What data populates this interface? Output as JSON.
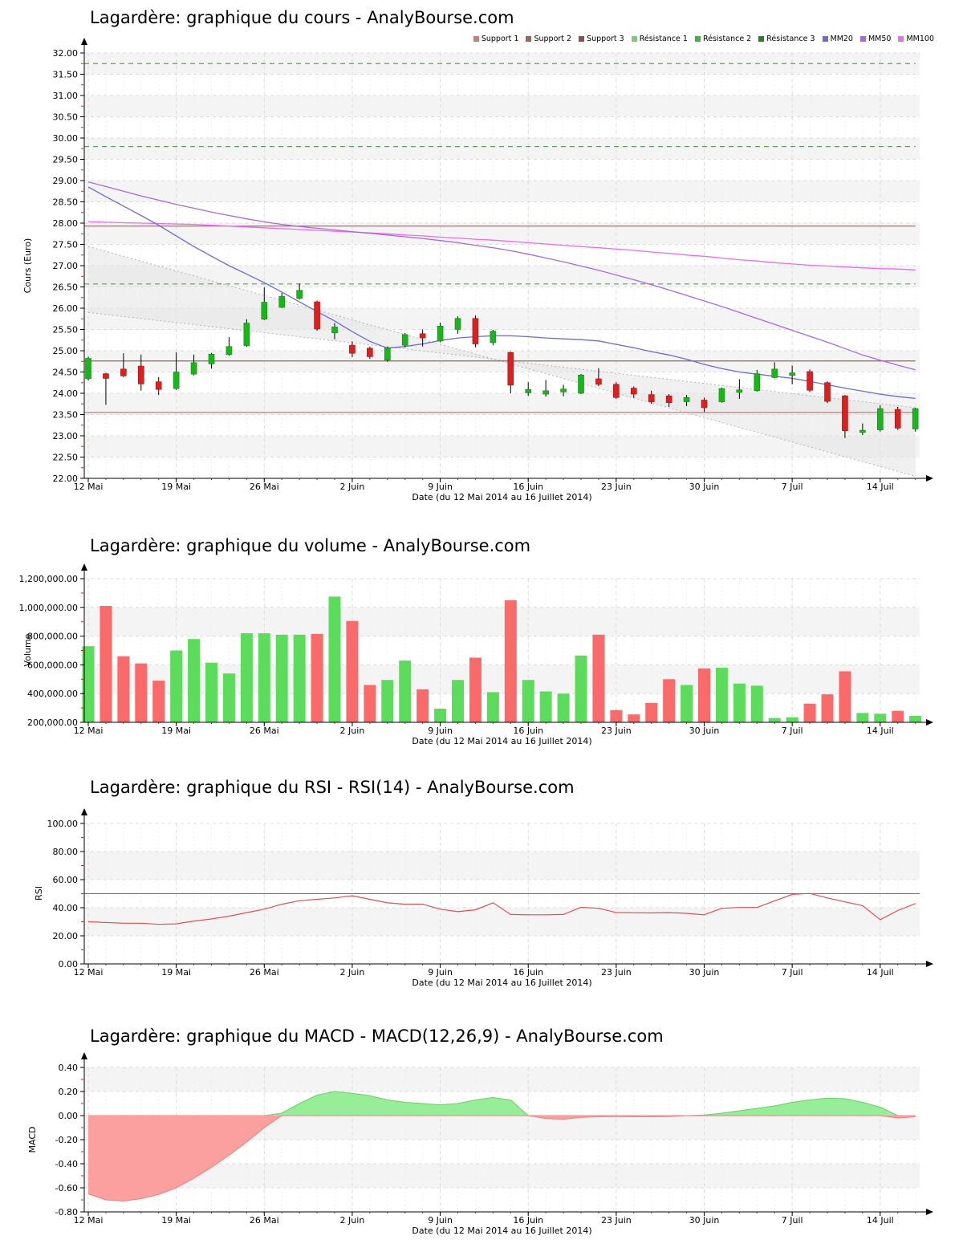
{
  "page_bg": "#ffffff",
  "x_axis": {
    "tick_labels": [
      "12 Mai",
      "19 Mai",
      "26 Mai",
      "2 Juin",
      "9 Juin",
      "16 Juin",
      "23 Juin",
      "30 Juin",
      "7 Juil",
      "14 Juil"
    ],
    "tick_day_indices": [
      0,
      5,
      10,
      15,
      20,
      25,
      30,
      35,
      40,
      45
    ]
  },
  "legend": [
    {
      "label": "Support 1",
      "color": "#C87C7C"
    },
    {
      "label": "Support 2",
      "color": "#A8625A"
    },
    {
      "label": "Support 3",
      "color": "#8E4F4F"
    },
    {
      "label": "Résistance 1",
      "color": "#7CCB7C"
    },
    {
      "label": "Résistance 2",
      "color": "#4EA84E"
    },
    {
      "label": "Résistance 3",
      "color": "#2F7D2F"
    },
    {
      "label": "MM20",
      "color": "#6A6AD8"
    },
    {
      "label": "MM50",
      "color": "#A86AD8"
    },
    {
      "label": "MM100",
      "color": "#EE6AEE"
    }
  ],
  "chart_data": [
    {
      "type": "candlestick",
      "title": "Lagardère: graphique du cours - AnalyBourse.com",
      "ylabel": "Cours (Euro)",
      "xlabel": "Date (du 12 Mai 2014 au 16 Juillet 2014)",
      "ylim": [
        22,
        32
      ],
      "ytick_labels": [
        "32.00",
        "31.50",
        "31.00",
        "30.50",
        "30.00",
        "29.50",
        "29.00",
        "28.50",
        "28.00",
        "27.50",
        "27.00",
        "26.50",
        "26.00",
        "25.50",
        "25.00",
        "24.50",
        "24.00",
        "23.50",
        "23.00",
        "22.50",
        "22.00"
      ],
      "dates": [
        "2014-05-12",
        "2014-05-13",
        "2014-05-14",
        "2014-05-15",
        "2014-05-16",
        "2014-05-19",
        "2014-05-20",
        "2014-05-21",
        "2014-05-22",
        "2014-05-23",
        "2014-05-26",
        "2014-05-27",
        "2014-05-28",
        "2014-05-29",
        "2014-05-30",
        "2014-06-02",
        "2014-06-03",
        "2014-06-04",
        "2014-06-05",
        "2014-06-06",
        "2014-06-09",
        "2014-06-10",
        "2014-06-11",
        "2014-06-12",
        "2014-06-13",
        "2014-06-16",
        "2014-06-17",
        "2014-06-18",
        "2014-06-19",
        "2014-06-20",
        "2014-06-23",
        "2014-06-24",
        "2014-06-25",
        "2014-06-26",
        "2014-06-27",
        "2014-06-30",
        "2014-07-01",
        "2014-07-02",
        "2014-07-03",
        "2014-07-04",
        "2014-07-07",
        "2014-07-08",
        "2014-07-09",
        "2014-07-10",
        "2014-07-11",
        "2014-07-14",
        "2014-07-15",
        "2014-07-16"
      ],
      "ohlc": [
        [
          24.34,
          24.86,
          24.3,
          24.82
        ],
        [
          24.46,
          24.48,
          23.73,
          24.35
        ],
        [
          24.57,
          24.94,
          24.38,
          24.41
        ],
        [
          24.64,
          24.91,
          24.06,
          24.22
        ],
        [
          24.27,
          24.38,
          23.96,
          24.09
        ],
        [
          24.11,
          24.96,
          24.08,
          24.5
        ],
        [
          24.45,
          24.91,
          24.42,
          24.72
        ],
        [
          24.69,
          24.95,
          24.58,
          24.92
        ],
        [
          24.91,
          25.32,
          24.88,
          25.1
        ],
        [
          25.12,
          25.74,
          25.09,
          25.65
        ],
        [
          25.74,
          26.49,
          25.72,
          26.14
        ],
        [
          26.02,
          26.36,
          26.0,
          26.28
        ],
        [
          26.23,
          26.58,
          26.2,
          26.42
        ],
        [
          26.15,
          26.18,
          25.47,
          25.51
        ],
        [
          25.42,
          25.65,
          25.27,
          25.56
        ],
        [
          25.13,
          25.22,
          24.85,
          24.94
        ],
        [
          25.06,
          25.1,
          24.81,
          24.86
        ],
        [
          24.78,
          25.1,
          24.74,
          25.07
        ],
        [
          25.13,
          25.42,
          25.08,
          25.38
        ],
        [
          25.4,
          25.5,
          25.1,
          25.3
        ],
        [
          25.23,
          25.66,
          25.2,
          25.58
        ],
        [
          25.5,
          25.81,
          25.4,
          25.76
        ],
        [
          25.76,
          25.83,
          25.08,
          25.16
        ],
        [
          25.19,
          25.49,
          25.13,
          25.46
        ],
        [
          24.96,
          24.98,
          24.0,
          24.19
        ],
        [
          24.01,
          24.26,
          23.94,
          24.09
        ],
        [
          23.98,
          24.31,
          23.92,
          24.06
        ],
        [
          24.03,
          24.2,
          23.93,
          24.1
        ],
        [
          24.0,
          24.45,
          23.98,
          24.43
        ],
        [
          24.34,
          24.59,
          24.17,
          24.21
        ],
        [
          24.21,
          24.26,
          23.87,
          23.9
        ],
        [
          24.12,
          24.16,
          23.89,
          23.98
        ],
        [
          23.97,
          24.06,
          23.75,
          23.8
        ],
        [
          23.94,
          23.98,
          23.68,
          23.78
        ],
        [
          23.8,
          23.96,
          23.7,
          23.9
        ],
        [
          23.84,
          23.9,
          23.56,
          23.66
        ],
        [
          23.8,
          24.13,
          23.78,
          24.11
        ],
        [
          24.02,
          24.33,
          23.87,
          24.08
        ],
        [
          24.06,
          24.55,
          24.04,
          24.46
        ],
        [
          24.37,
          24.73,
          24.35,
          24.57
        ],
        [
          24.42,
          24.65,
          24.21,
          24.48
        ],
        [
          24.51,
          24.56,
          24.03,
          24.07
        ],
        [
          24.25,
          24.28,
          23.77,
          23.81
        ],
        [
          23.94,
          23.96,
          22.95,
          23.12
        ],
        [
          23.08,
          23.29,
          23.02,
          23.13
        ],
        [
          23.14,
          23.72,
          23.1,
          23.64
        ],
        [
          23.62,
          23.68,
          23.14,
          23.18
        ],
        [
          23.16,
          23.66,
          23.1,
          23.64
        ]
      ],
      "candle_up_color": "#1CB41C",
      "candle_down_color": "#DE1F1F",
      "levels": [
        {
          "name": "Support 1",
          "value": 23.55,
          "color": "#C87C7C",
          "style": "solid"
        },
        {
          "name": "Support 2",
          "value": 24.76,
          "color": "#9A6456",
          "style": "solid"
        },
        {
          "name": "Support 3",
          "value": 27.93,
          "color": "#C25555",
          "style": "solid"
        },
        {
          "name": "Résistance 1",
          "value": 26.57,
          "color": "#5FA05F",
          "style": "dashed"
        },
        {
          "name": "Résistance 2",
          "value": 29.8,
          "color": "#5FA05F",
          "style": "dashed"
        },
        {
          "name": "Résistance 3",
          "value": 31.75,
          "color": "#5FA05F",
          "style": "dashed"
        }
      ],
      "trend_channel": {
        "line1": {
          "start": 27.45,
          "end": 22.05
        },
        "line2": {
          "start": 25.9,
          "end": 23.66
        },
        "line_color": "#b4b4b4",
        "fill_color": "#e4e4e4"
      },
      "series": [
        {
          "name": "MM20",
          "color": "#6A6AD8",
          "values": [
            28.85,
            28.62,
            28.4,
            28.18,
            27.95,
            27.7,
            27.45,
            27.22,
            27.0,
            26.8,
            26.6,
            26.38,
            26.15,
            25.92,
            25.7,
            25.45,
            25.22,
            25.06,
            25.1,
            25.16,
            25.24,
            25.3,
            25.33,
            25.35,
            25.35,
            25.33,
            25.3,
            25.28,
            25.26,
            25.23,
            25.15,
            25.07,
            24.98,
            24.9,
            24.8,
            24.68,
            24.58,
            24.5,
            24.45,
            24.4,
            24.35,
            24.28,
            24.2,
            24.12,
            24.05,
            23.98,
            23.92,
            23.88
          ]
        },
        {
          "name": "MM50",
          "color": "#A86AD8",
          "values": [
            28.97,
            28.86,
            28.75,
            28.64,
            28.54,
            28.44,
            28.35,
            28.26,
            28.18,
            28.1,
            28.03,
            27.97,
            27.92,
            27.88,
            27.84,
            27.8,
            27.76,
            27.72,
            27.68,
            27.64,
            27.59,
            27.54,
            27.48,
            27.42,
            27.35,
            27.27,
            27.18,
            27.09,
            26.99,
            26.89,
            26.78,
            26.67,
            26.55,
            26.43,
            26.3,
            26.17,
            26.04,
            25.9,
            25.76,
            25.62,
            25.48,
            25.34,
            25.2,
            25.05,
            24.9,
            24.78,
            24.66,
            24.55
          ]
        },
        {
          "name": "MM100",
          "color": "#EE6AEE",
          "values": [
            28.03,
            28.02,
            28.01,
            28.0,
            27.99,
            27.98,
            27.97,
            27.95,
            27.93,
            27.91,
            27.89,
            27.87,
            27.85,
            27.83,
            27.81,
            27.79,
            27.77,
            27.75,
            27.72,
            27.7,
            27.67,
            27.65,
            27.62,
            27.6,
            27.57,
            27.54,
            27.51,
            27.48,
            27.45,
            27.42,
            27.39,
            27.36,
            27.32,
            27.29,
            27.25,
            27.22,
            27.18,
            27.14,
            27.11,
            27.07,
            27.04,
            27.01,
            26.99,
            26.97,
            26.95,
            26.93,
            26.92,
            26.9
          ]
        }
      ]
    },
    {
      "type": "bar",
      "title": "Lagardère: graphique du volume - AnalyBourse.com",
      "ylabel": "Volume",
      "xlabel": "Date (du 12 Mai 2014 au 16 Juillet 2014)",
      "ylim": [
        200000,
        1200000
      ],
      "ytick_labels": [
        "1,200,000.00",
        "1,000,000.00",
        "800,000.00",
        "600,000.00",
        "400,000.00",
        "200,000.00"
      ],
      "values": [
        730000,
        1010000,
        660000,
        610000,
        490000,
        700000,
        780000,
        615000,
        540000,
        820000,
        820000,
        810000,
        810000,
        815000,
        1075000,
        905000,
        460000,
        495000,
        630000,
        430000,
        295000,
        495000,
        650000,
        410000,
        1050000,
        495000,
        415000,
        400000,
        665000,
        810000,
        285000,
        255000,
        335000,
        500000,
        460000,
        575000,
        580000,
        470000,
        455000,
        230000,
        235000,
        330000,
        395000,
        555000,
        265000,
        260000,
        280000,
        245000
      ],
      "direction": [
        "up",
        "down",
        "down",
        "down",
        "down",
        "up",
        "up",
        "up",
        "up",
        "up",
        "up",
        "up",
        "up",
        "down",
        "up",
        "down",
        "down",
        "up",
        "up",
        "down",
        "up",
        "up",
        "down",
        "up",
        "down",
        "up",
        "up",
        "up",
        "up",
        "down",
        "down",
        "down",
        "down",
        "down",
        "up",
        "down",
        "up",
        "up",
        "up",
        "up",
        "up",
        "down",
        "down",
        "down",
        "up",
        "up",
        "down",
        "up"
      ],
      "bar_up_color": "#5CDB5C",
      "bar_down_color": "#F96B6B"
    },
    {
      "type": "line",
      "title": "Lagardère: graphique du RSI - RSI(14) - AnalyBourse.com",
      "ylabel": "RSI",
      "xlabel": "Date (du 12 Mai 2014 au 16 Juillet 2014)",
      "ylim": [
        0,
        100
      ],
      "ytick_labels": [
        "100.00",
        "80.00",
        "60.00",
        "40.00",
        "20.00",
        "0.00"
      ],
      "midline": 50,
      "line_color": "#E05050",
      "values": [
        30,
        29.5,
        29,
        29,
        28.2,
        28.5,
        30.5,
        32,
        34,
        36.5,
        39,
        42.5,
        45,
        46,
        47,
        48.5,
        46,
        43.5,
        42.5,
        42.5,
        39,
        37.2,
        38.5,
        43.5,
        35.2,
        35,
        35,
        35.2,
        40.3,
        39.6,
        36.6,
        36.4,
        36.3,
        36.5,
        36,
        35,
        39.6,
        40.2,
        40.2,
        44.8,
        49.5,
        50.2,
        47,
        44.2,
        41.5,
        31.5,
        38,
        43
      ]
    },
    {
      "type": "area",
      "title": "Lagardère: graphique du MACD - MACD(12,26,9) - AnalyBourse.com",
      "ylabel": "MACD",
      "xlabel": "Date (du 12 Mai 2014 au 16 Juillet 2014)",
      "ylim": [
        -0.8,
        0.4
      ],
      "ytick_labels": [
        "0.40",
        "0.20",
        "0.00",
        "-0.20",
        "-0.40",
        "-0.60",
        "-0.80"
      ],
      "pos_fill": "#90EE90",
      "pos_edge": "#6FCB6F",
      "neg_fill": "#FB9A9A",
      "neg_edge": "#F27D7D",
      "values": [
        -0.65,
        -0.7,
        -0.71,
        -0.69,
        -0.655,
        -0.6,
        -0.52,
        -0.43,
        -0.33,
        -0.22,
        -0.1,
        0.02,
        0.1,
        0.17,
        0.2,
        0.185,
        0.165,
        0.13,
        0.11,
        0.1,
        0.09,
        0.1,
        0.13,
        0.15,
        0.13,
        0.0,
        -0.025,
        -0.03,
        -0.015,
        -0.01,
        -0.008,
        -0.01,
        -0.01,
        -0.008,
        0.0,
        0.005,
        0.02,
        0.04,
        0.06,
        0.08,
        0.11,
        0.13,
        0.145,
        0.14,
        0.11,
        0.07,
        -0.02,
        -0.01
      ]
    }
  ]
}
